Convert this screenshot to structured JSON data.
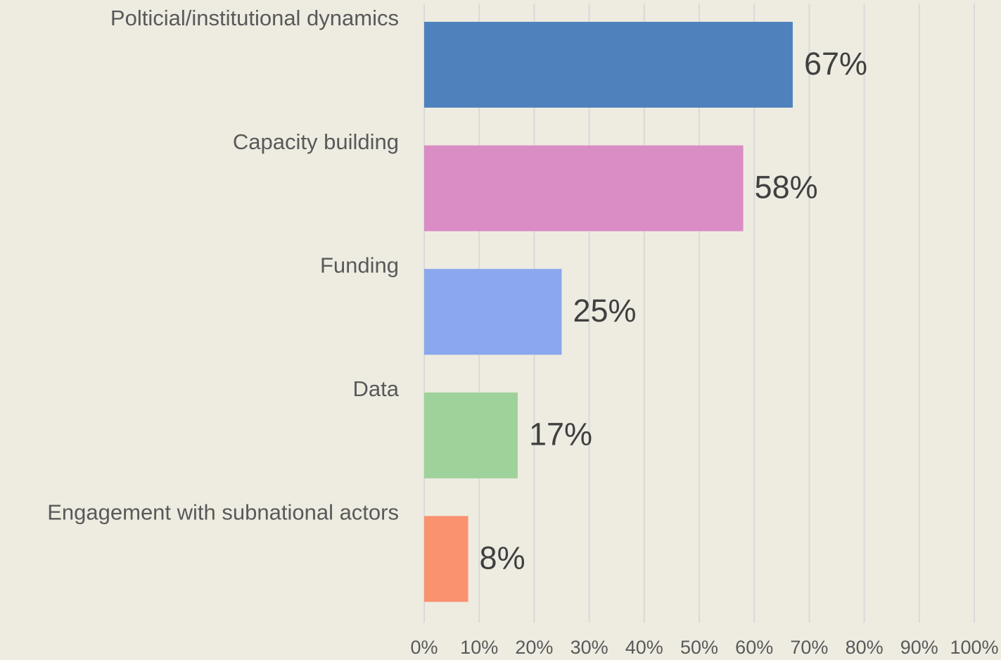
{
  "chart_data": {
    "type": "bar",
    "orientation": "horizontal",
    "categories": [
      "Polticial/institutional dynamics",
      "Capacity building",
      "Funding",
      "Data",
      "Engagement with subnational actors"
    ],
    "values": [
      67,
      58,
      25,
      17,
      8
    ],
    "value_labels": [
      "67%",
      "58%",
      "25%",
      "17%",
      "8%"
    ],
    "colors": [
      "#4f81bd",
      "#da8cc4",
      "#8ba7ee",
      "#9ed29a",
      "#fa916f"
    ],
    "xlim": [
      0,
      100
    ],
    "xticks": [
      {
        "value": 0,
        "label": "0%"
      },
      {
        "value": 10,
        "label": "10%"
      },
      {
        "value": 20,
        "label": "20%"
      },
      {
        "value": 30,
        "label": "30%"
      },
      {
        "value": 40,
        "label": "40%"
      },
      {
        "value": 50,
        "label": "50%"
      },
      {
        "value": 60,
        "label": "60%"
      },
      {
        "value": 70,
        "label": "70%"
      },
      {
        "value": 80,
        "label": "80%"
      },
      {
        "value": 90,
        "label": "90%"
      },
      {
        "value": 100,
        "label": "100%"
      }
    ],
    "grid": true
  }
}
